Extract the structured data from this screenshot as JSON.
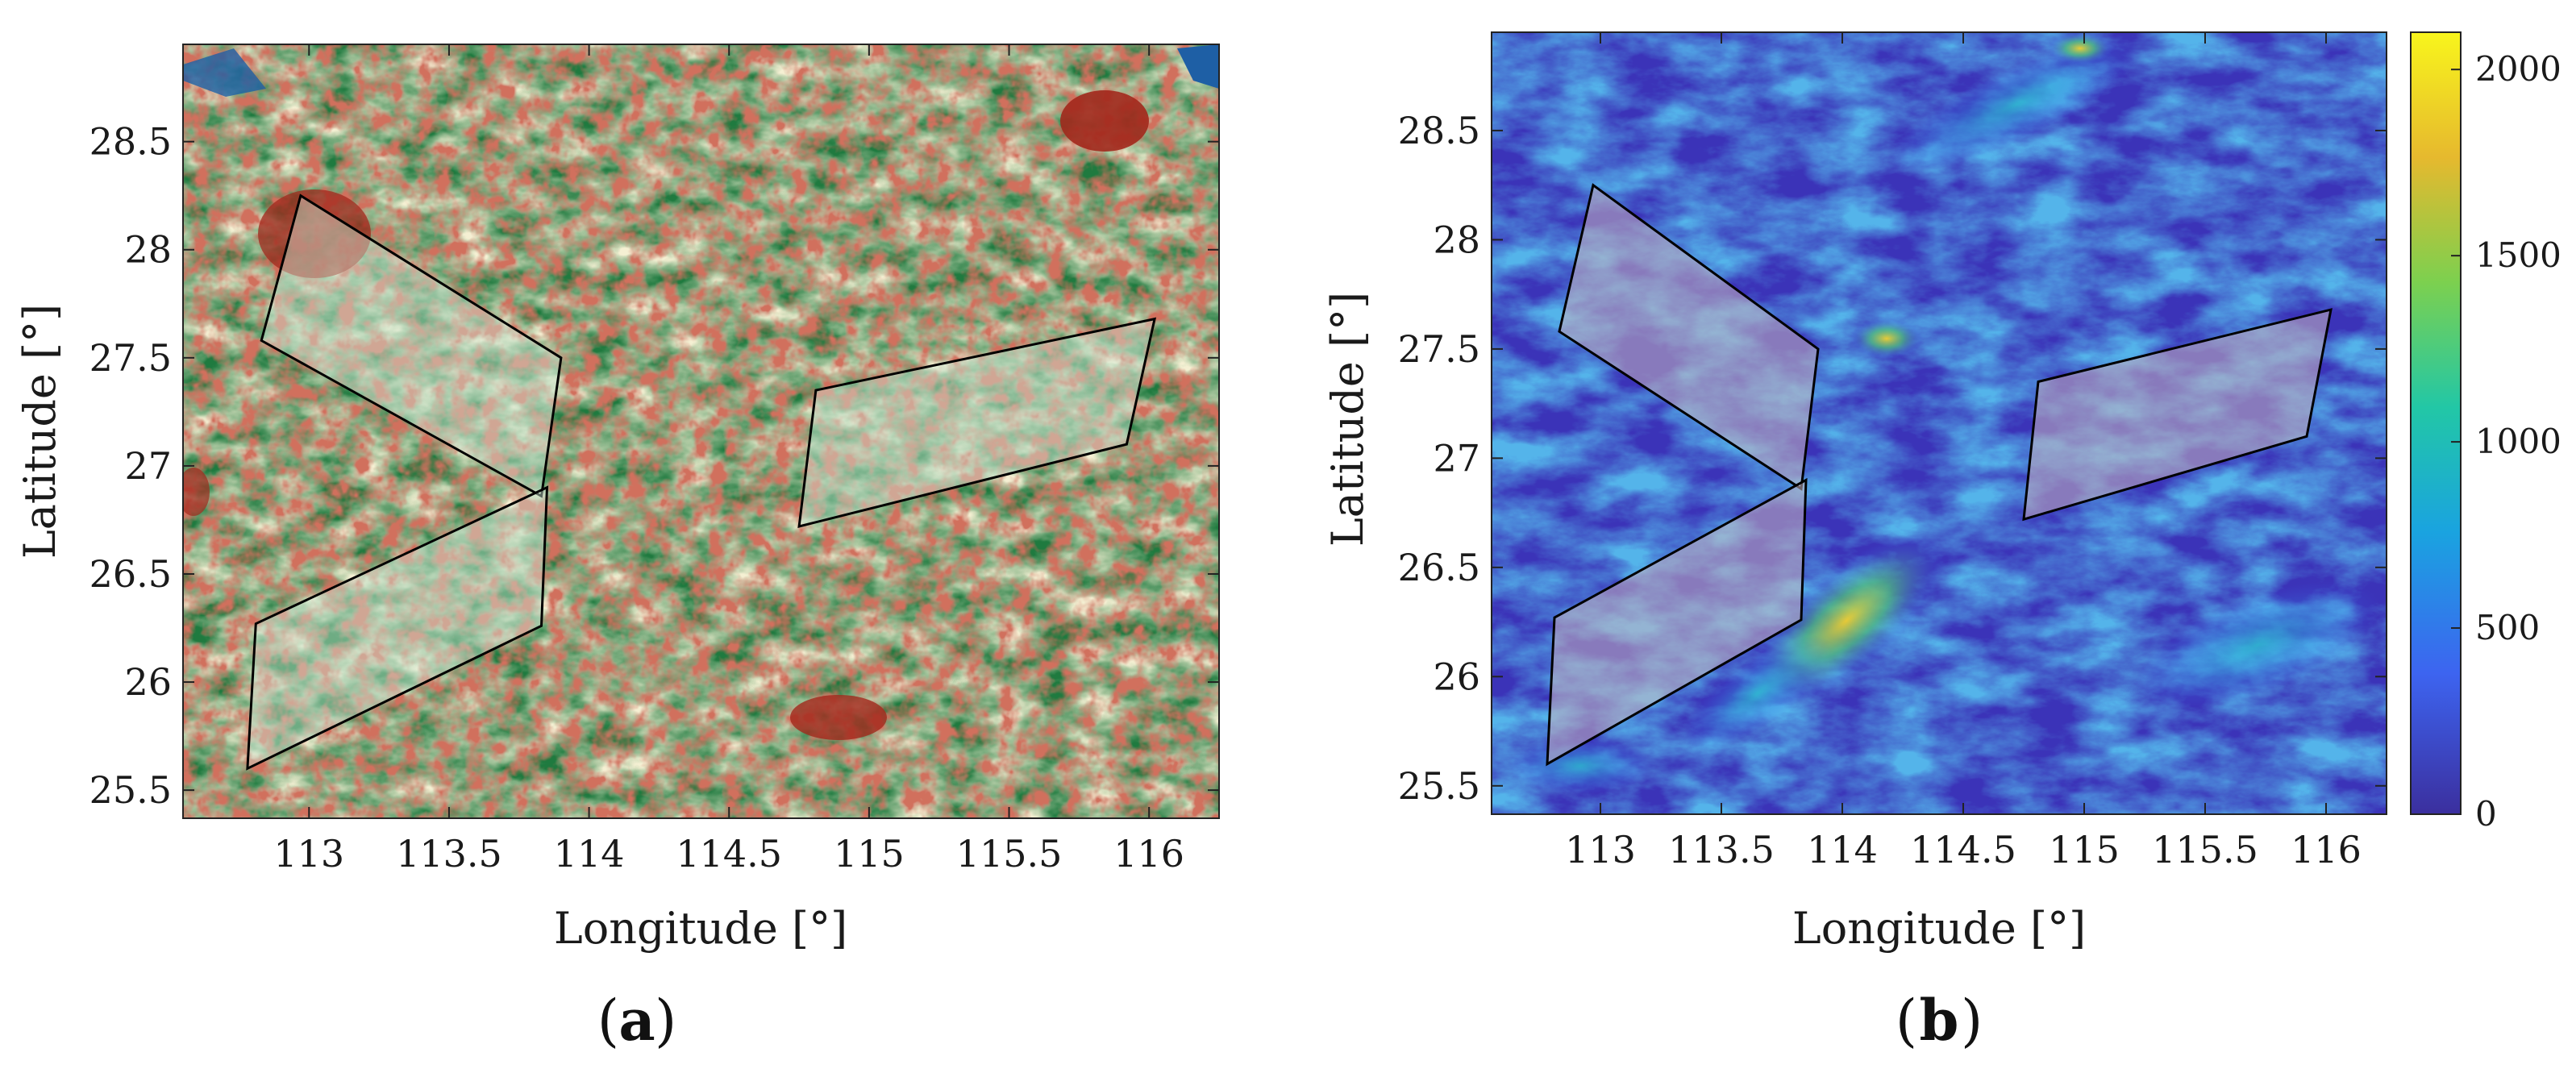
{
  "figure": {
    "panels": [
      {
        "id": "a",
        "panel_label": "a",
        "xlabel": "Longitude [°]",
        "ylabel": "Latitude [°]",
        "map_type": "land-cover",
        "xlim": [
          112.55,
          116.25
        ],
        "ylim": [
          25.37,
          28.95
        ],
        "xticks": [
          "113",
          "113.5",
          "114",
          "114.5",
          "115",
          "115.5",
          "116"
        ],
        "yticks": [
          "25.5",
          "26",
          "26.5",
          "27",
          "27.5",
          "28",
          "28.5"
        ],
        "regions": [
          {
            "name": "upper-left",
            "corners": [
              [
                112.97,
                28.25
              ],
              [
                113.9,
                27.5
              ],
              [
                113.83,
                26.86
              ],
              [
                112.83,
                27.58
              ]
            ]
          },
          {
            "name": "lower-left",
            "corners": [
              [
                112.81,
                26.27
              ],
              [
                113.85,
                26.9
              ],
              [
                113.83,
                26.26
              ],
              [
                112.78,
                25.6
              ]
            ]
          },
          {
            "name": "right",
            "corners": [
              [
                114.81,
                27.35
              ],
              [
                116.02,
                27.68
              ],
              [
                115.92,
                27.1
              ],
              [
                114.75,
                26.72
              ]
            ]
          }
        ],
        "colors": {
          "forest": "#1f7a3f",
          "cropland": "#e9dfa6",
          "urban": "#a2281c",
          "water": "#1e5fa5",
          "grass": "#6aa84f"
        }
      },
      {
        "id": "b",
        "panel_label": "b",
        "xlabel": "Longitude [°]",
        "ylabel": "Latitude [°]",
        "map_type": "elevation",
        "xlim": [
          112.55,
          116.25
        ],
        "ylim": [
          25.37,
          28.95
        ],
        "xticks": [
          "113",
          "113.5",
          "114",
          "114.5",
          "115",
          "115.5",
          "116"
        ],
        "yticks": [
          "25.5",
          "26",
          "26.5",
          "27",
          "27.5",
          "28",
          "28.5"
        ],
        "regions": [
          {
            "name": "upper-left",
            "corners": [
              [
                112.97,
                28.25
              ],
              [
                113.9,
                27.5
              ],
              [
                113.83,
                26.86
              ],
              [
                112.83,
                27.58
              ]
            ]
          },
          {
            "name": "lower-left",
            "corners": [
              [
                112.81,
                26.27
              ],
              [
                113.85,
                26.9
              ],
              [
                113.83,
                26.26
              ],
              [
                112.78,
                25.6
              ]
            ]
          },
          {
            "name": "right",
            "corners": [
              [
                114.81,
                27.35
              ],
              [
                116.02,
                27.68
              ],
              [
                115.92,
                27.1
              ],
              [
                114.75,
                26.72
              ]
            ]
          }
        ],
        "colorbar": {
          "range": [
            0,
            2100
          ],
          "ticks": [
            "0",
            "500",
            "1000",
            "1500",
            "2000"
          ],
          "colors": [
            "#3b2f9e",
            "#3d64f0",
            "#1aa3e0",
            "#22c7a6",
            "#7cd04f",
            "#e6b92e",
            "#f8f51c"
          ]
        }
      }
    ]
  }
}
